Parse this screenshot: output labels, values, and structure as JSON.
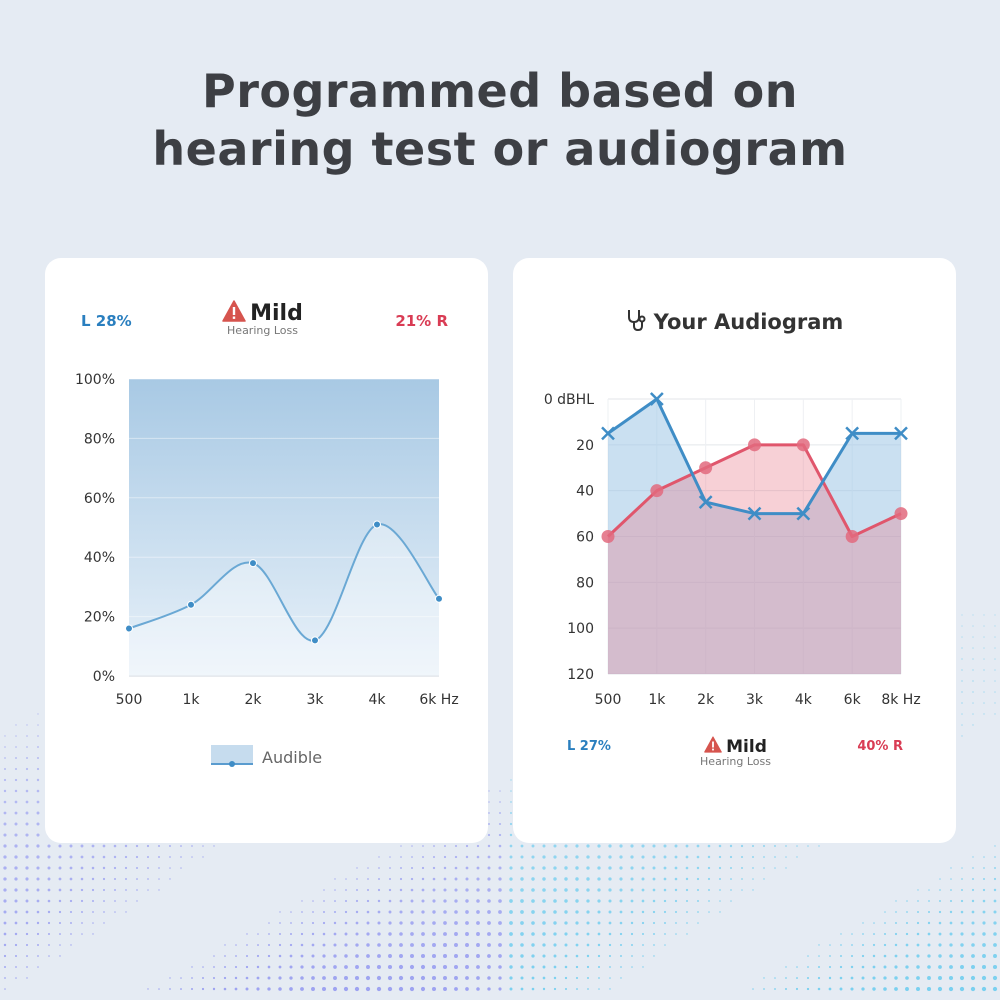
{
  "headline": {
    "line1": "Programmed based on",
    "line2": "hearing test or audiogram"
  },
  "left_card": {
    "left_pct": "L  28%",
    "right_pct": "21%  R",
    "severity": "Mild",
    "severity_sub": "Hearing Loss",
    "legend_label": "Audible"
  },
  "right_card": {
    "title": "Your Audiogram",
    "left_pct": "L  27%",
    "right_pct": "40%  R",
    "severity": "Mild",
    "severity_sub": "Hearing Loss"
  },
  "colors": {
    "background": "#e5ebf3",
    "blue": "#3f8dc6",
    "red": "#e0566c",
    "area_blue": "#b9d5ea",
    "warning": "#d6544e"
  },
  "chart_data": [
    {
      "type": "area",
      "categories": [
        "500",
        "1k",
        "2k",
        "3k",
        "4k",
        "6k Hz"
      ],
      "series": [
        {
          "name": "Audible",
          "values": [
            16,
            24,
            38,
            12,
            51,
            26
          ]
        }
      ],
      "ylim": [
        0,
        100
      ],
      "yticks": [
        "0%",
        "20%",
        "40%",
        "60%",
        "80%",
        "100%"
      ],
      "ytick_values": [
        0,
        20,
        40,
        60,
        80,
        100
      ],
      "grid": true,
      "legend": "bottom"
    },
    {
      "type": "line",
      "categories": [
        "500",
        "1k",
        "2k",
        "3k",
        "4k",
        "6k",
        "8k Hz"
      ],
      "series": [
        {
          "values": [
            15,
            0,
            45,
            50,
            50,
            15,
            15
          ],
          "marker": "x",
          "color": "#3f8dc6"
        },
        {
          "values": [
            60,
            40,
            30,
            20,
            20,
            60,
            50
          ],
          "marker": "o",
          "color": "#e0566c"
        }
      ],
      "ylim": [
        0,
        120
      ],
      "y_inverted": true,
      "yticks": [
        "0 dBHL",
        "20",
        "40",
        "60",
        "80",
        "100",
        "120"
      ],
      "ytick_values": [
        0,
        20,
        40,
        60,
        80,
        100,
        120
      ],
      "grid": true
    }
  ]
}
